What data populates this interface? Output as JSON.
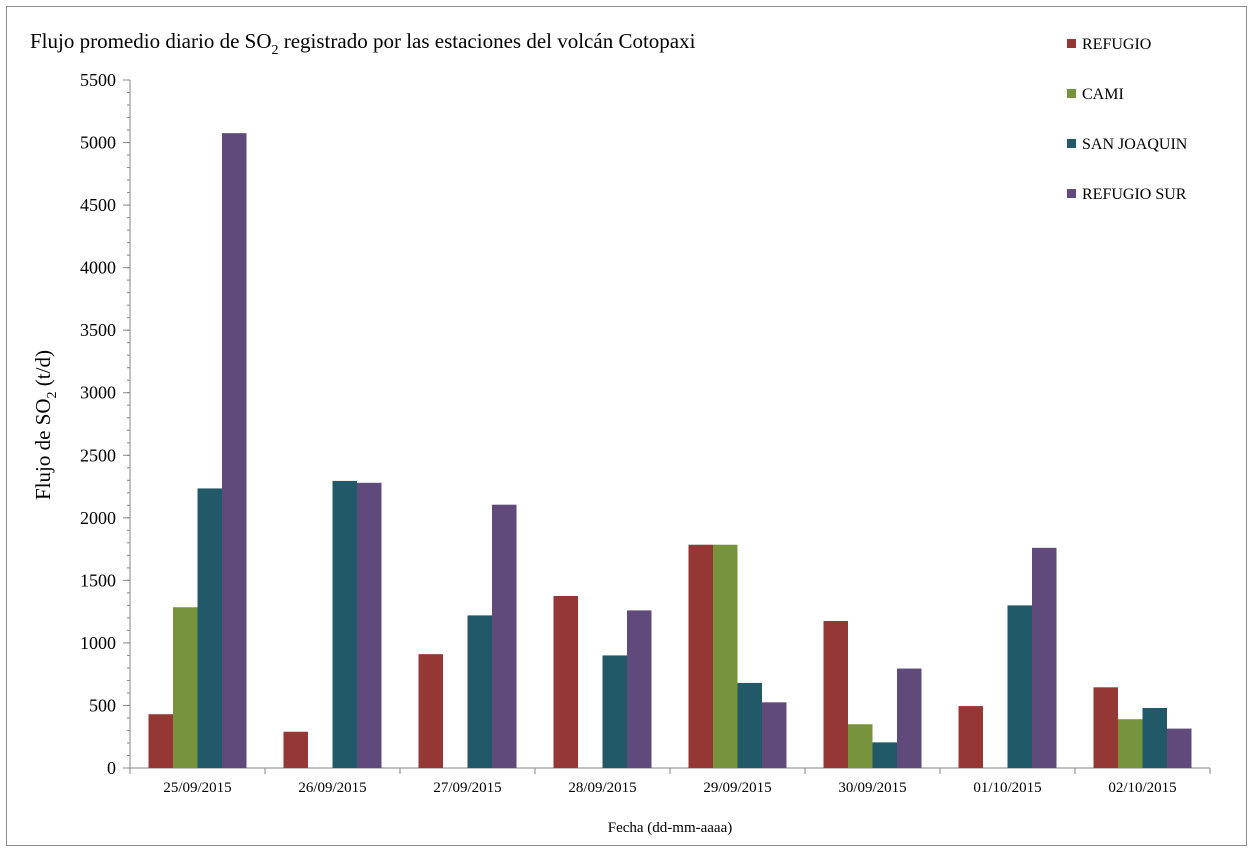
{
  "chart_data": {
    "type": "bar",
    "title": {
      "prefix": "Flujo promedio diario de SO",
      "subscript": "2",
      "suffix": " registrado por las estaciones del volcán Cotopaxi"
    },
    "xlabel": "Fecha (dd-mm-aaaa)",
    "ylabel": {
      "prefix": "Flujo de SO",
      "subscript": "2",
      "suffix": " (t/d)"
    },
    "categories": [
      "25/09/2015",
      "26/09/2015",
      "27/09/2015",
      "28/09/2015",
      "29/09/2015",
      "30/09/2015",
      "01/10/2015",
      "02/10/2015"
    ],
    "ylim": [
      0,
      5500
    ],
    "yticks": [
      0,
      500,
      1000,
      1500,
      2000,
      2500,
      3000,
      3500,
      4000,
      4500,
      5000,
      5500
    ],
    "grid": false,
    "legend_position": "top-right",
    "series": [
      {
        "name": "REFUGIO",
        "color": "#953735",
        "values": [
          430,
          290,
          910,
          1375,
          1785,
          1175,
          495,
          645
        ]
      },
      {
        "name": "CAMI",
        "color": "#77933c",
        "values": [
          1285,
          null,
          null,
          null,
          1785,
          350,
          null,
          390
        ]
      },
      {
        "name": "SAN JOAQUIN",
        "color": "#215968",
        "values": [
          2235,
          2295,
          1220,
          900,
          680,
          205,
          1300,
          480
        ]
      },
      {
        "name": "REFUGIO SUR",
        "color": "#604a7b",
        "values": [
          5075,
          2280,
          2105,
          1260,
          525,
          795,
          1760,
          315
        ]
      }
    ]
  }
}
